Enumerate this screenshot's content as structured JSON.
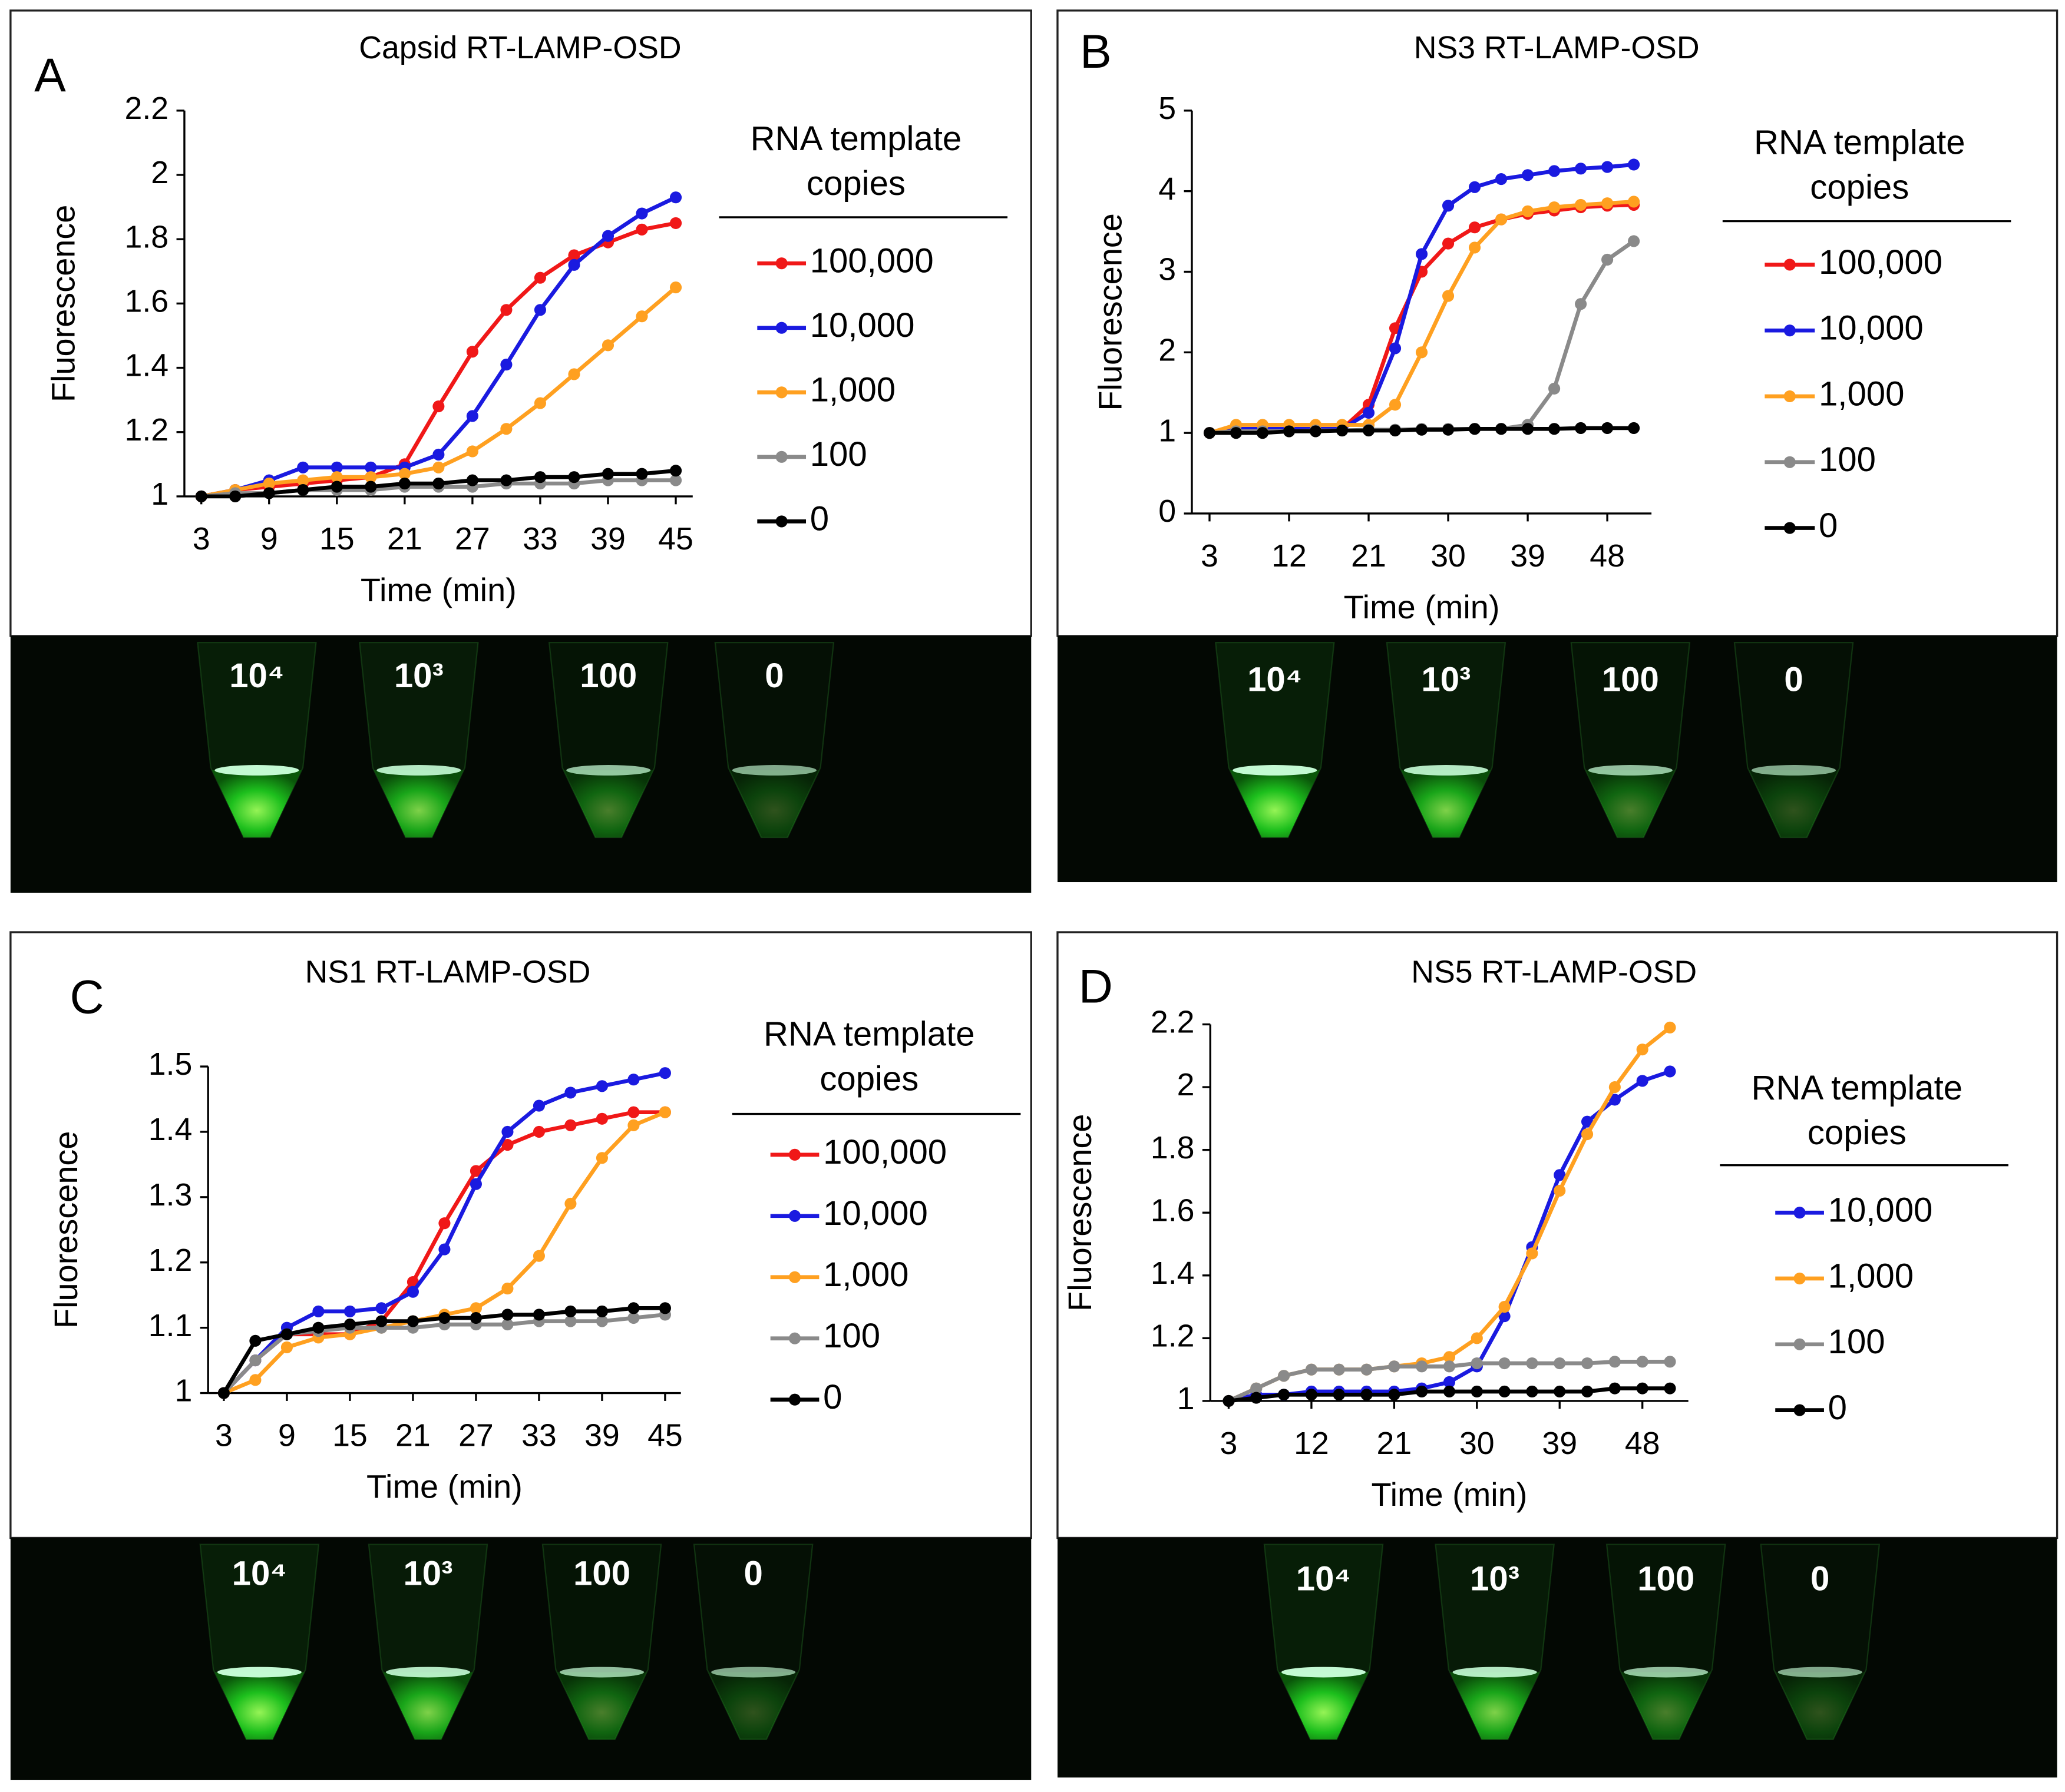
{
  "chart_data": [
    {
      "type": "line",
      "panel_label": "A",
      "title": "Capsid RT-LAMP-OSD",
      "x_label": "Time (min)",
      "y_label": "Fluorescence",
      "legend_title": "RNA template copies",
      "x": [
        3,
        6,
        9,
        12,
        15,
        18,
        21,
        24,
        27,
        30,
        33,
        36,
        39,
        42,
        45
      ],
      "xlim": [
        1.5,
        46.5
      ],
      "xticks": [
        3,
        9,
        15,
        21,
        27,
        33,
        39,
        45
      ],
      "ylim": [
        1,
        2.2
      ],
      "yticks": [
        1,
        1.2,
        1.4,
        1.6,
        1.8,
        2,
        2.2
      ],
      "series": [
        {
          "name": "100,000",
          "color": "#f01818",
          "values": [
            1,
            1.02,
            1.03,
            1.04,
            1.05,
            1.06,
            1.1,
            1.28,
            1.45,
            1.58,
            1.68,
            1.75,
            1.79,
            1.83,
            1.85
          ]
        },
        {
          "name": "10,000",
          "color": "#1a1ae0",
          "values": [
            1,
            1.02,
            1.05,
            1.09,
            1.09,
            1.09,
            1.09,
            1.13,
            1.25,
            1.41,
            1.58,
            1.72,
            1.81,
            1.88,
            1.93
          ]
        },
        {
          "name": "1,000",
          "color": "#ffa020",
          "values": [
            1,
            1.02,
            1.04,
            1.05,
            1.06,
            1.06,
            1.07,
            1.09,
            1.14,
            1.21,
            1.29,
            1.38,
            1.47,
            1.56,
            1.65
          ]
        },
        {
          "name": "100",
          "color": "#8a8a8a",
          "values": [
            1,
            1.01,
            1.01,
            1.02,
            1.02,
            1.02,
            1.03,
            1.03,
            1.03,
            1.04,
            1.04,
            1.04,
            1.05,
            1.05,
            1.05
          ]
        },
        {
          "name": "0",
          "color": "#000000",
          "values": [
            1,
            1,
            1.01,
            1.02,
            1.03,
            1.03,
            1.04,
            1.04,
            1.05,
            1.05,
            1.06,
            1.06,
            1.07,
            1.07,
            1.08
          ]
        }
      ],
      "image_labels": [
        "10⁴",
        "10³",
        "100",
        "0"
      ]
    },
    {
      "type": "line",
      "panel_label": "B",
      "title": "NS3 RT-LAMP-OSD",
      "x_label": "Time (min)",
      "y_label": "Fluorescence",
      "legend_title": "RNA template copies",
      "x": [
        3,
        6,
        9,
        12,
        15,
        18,
        21,
        24,
        27,
        30,
        33,
        36,
        39,
        42,
        45,
        48,
        51
      ],
      "xlim": [
        1,
        53
      ],
      "xticks": [
        3,
        12,
        21,
        30,
        39,
        48
      ],
      "ylim": [
        0,
        5
      ],
      "yticks": [
        0,
        1,
        2,
        3,
        4,
        5
      ],
      "series": [
        {
          "name": "100,000",
          "color": "#f01818",
          "values": [
            1,
            1.05,
            1.05,
            1.05,
            1.05,
            1.05,
            1.35,
            2.3,
            3.0,
            3.35,
            3.55,
            3.65,
            3.72,
            3.76,
            3.8,
            3.82,
            3.83
          ]
        },
        {
          "name": "10,000",
          "color": "#1a1ae0",
          "values": [
            1,
            1.05,
            1.05,
            1.05,
            1.05,
            1.05,
            1.25,
            2.05,
            3.22,
            3.82,
            4.05,
            4.15,
            4.2,
            4.25,
            4.28,
            4.3,
            4.33
          ]
        },
        {
          "name": "1,000",
          "color": "#ffa020",
          "values": [
            1,
            1.1,
            1.1,
            1.1,
            1.1,
            1.1,
            1.1,
            1.35,
            2.0,
            2.7,
            3.3,
            3.65,
            3.75,
            3.8,
            3.83,
            3.85,
            3.87
          ]
        },
        {
          "name": "100",
          "color": "#8a8a8a",
          "values": [
            1,
            1.02,
            1.02,
            1.02,
            1.03,
            1.03,
            1.04,
            1.04,
            1.05,
            1.05,
            1.05,
            1.05,
            1.1,
            1.55,
            2.6,
            3.15,
            3.38
          ]
        },
        {
          "name": "0",
          "color": "#000000",
          "values": [
            1,
            1,
            1,
            1.02,
            1.02,
            1.03,
            1.03,
            1.03,
            1.04,
            1.04,
            1.05,
            1.05,
            1.05,
            1.05,
            1.06,
            1.06,
            1.06
          ]
        }
      ],
      "image_labels": [
        "10⁴",
        "10³",
        "100",
        "0"
      ]
    },
    {
      "type": "line",
      "panel_label": "C",
      "title": "NS1 RT-LAMP-OSD",
      "x_label": "Time (min)",
      "y_label": "Fluorescence",
      "legend_title": "RNA template copies",
      "x": [
        3,
        6,
        9,
        12,
        15,
        18,
        21,
        24,
        27,
        30,
        33,
        36,
        39,
        42,
        45
      ],
      "xlim": [
        1.5,
        46.5
      ],
      "xticks": [
        3,
        9,
        15,
        21,
        27,
        33,
        39,
        45
      ],
      "ylim": [
        1,
        1.5
      ],
      "yticks": [
        1,
        1.1,
        1.2,
        1.3,
        1.4,
        1.5
      ],
      "series": [
        {
          "name": "100,000",
          "color": "#f01818",
          "values": [
            1,
            1.05,
            1.09,
            1.09,
            1.09,
            1.11,
            1.17,
            1.26,
            1.34,
            1.38,
            1.4,
            1.41,
            1.42,
            1.43,
            1.43
          ]
        },
        {
          "name": "10,000",
          "color": "#1a1ae0",
          "values": [
            1,
            1.05,
            1.1,
            1.125,
            1.125,
            1.13,
            1.155,
            1.22,
            1.32,
            1.4,
            1.44,
            1.46,
            1.47,
            1.48,
            1.49
          ]
        },
        {
          "name": "1,000",
          "color": "#ffa020",
          "values": [
            1,
            1.02,
            1.07,
            1.085,
            1.09,
            1.1,
            1.11,
            1.12,
            1.13,
            1.16,
            1.21,
            1.29,
            1.36,
            1.41,
            1.43
          ]
        },
        {
          "name": "100",
          "color": "#8a8a8a",
          "values": [
            1,
            1.05,
            1.09,
            1.095,
            1.1,
            1.1,
            1.1,
            1.105,
            1.105,
            1.105,
            1.11,
            1.11,
            1.11,
            1.115,
            1.12
          ]
        },
        {
          "name": "0",
          "color": "#000000",
          "values": [
            1,
            1.08,
            1.09,
            1.1,
            1.105,
            1.11,
            1.11,
            1.115,
            1.115,
            1.12,
            1.12,
            1.125,
            1.125,
            1.13,
            1.13
          ]
        }
      ],
      "image_labels": [
        "10⁴",
        "10³",
        "100",
        "0"
      ]
    },
    {
      "type": "line",
      "panel_label": "D",
      "title": "NS5 RT-LAMP-OSD",
      "x_label": "Time (min)",
      "y_label": "Fluorescence",
      "legend_title": "RNA template copies",
      "x": [
        3,
        6,
        9,
        12,
        15,
        18,
        21,
        24,
        27,
        30,
        33,
        36,
        39,
        42,
        45,
        48,
        51
      ],
      "xlim": [
        1,
        53
      ],
      "xticks": [
        3,
        12,
        21,
        30,
        39,
        48
      ],
      "ylim": [
        1,
        2.2
      ],
      "yticks": [
        1,
        1.2,
        1.4,
        1.6,
        1.8,
        2,
        2.2
      ],
      "series": [
        {
          "name": "10,000",
          "color": "#1a1ae0",
          "values": [
            1,
            1.02,
            1.02,
            1.03,
            1.03,
            1.03,
            1.03,
            1.04,
            1.06,
            1.11,
            1.27,
            1.49,
            1.72,
            1.89,
            1.96,
            2.02,
            2.05
          ]
        },
        {
          "name": "1,000",
          "color": "#ffa020",
          "values": [
            1,
            1.04,
            1.08,
            1.1,
            1.1,
            1.1,
            1.11,
            1.12,
            1.14,
            1.2,
            1.3,
            1.47,
            1.67,
            1.85,
            2.0,
            2.12,
            2.19
          ]
        },
        {
          "name": "100",
          "color": "#8a8a8a",
          "values": [
            1,
            1.04,
            1.08,
            1.1,
            1.1,
            1.1,
            1.11,
            1.11,
            1.11,
            1.12,
            1.12,
            1.12,
            1.12,
            1.12,
            1.125,
            1.125,
            1.125
          ]
        },
        {
          "name": "0",
          "color": "#000000",
          "values": [
            1,
            1.01,
            1.02,
            1.02,
            1.02,
            1.02,
            1.02,
            1.03,
            1.03,
            1.03,
            1.03,
            1.03,
            1.03,
            1.03,
            1.04,
            1.04,
            1.04
          ]
        }
      ],
      "image_labels": [
        "10⁴",
        "10³",
        "100",
        "0"
      ]
    }
  ]
}
